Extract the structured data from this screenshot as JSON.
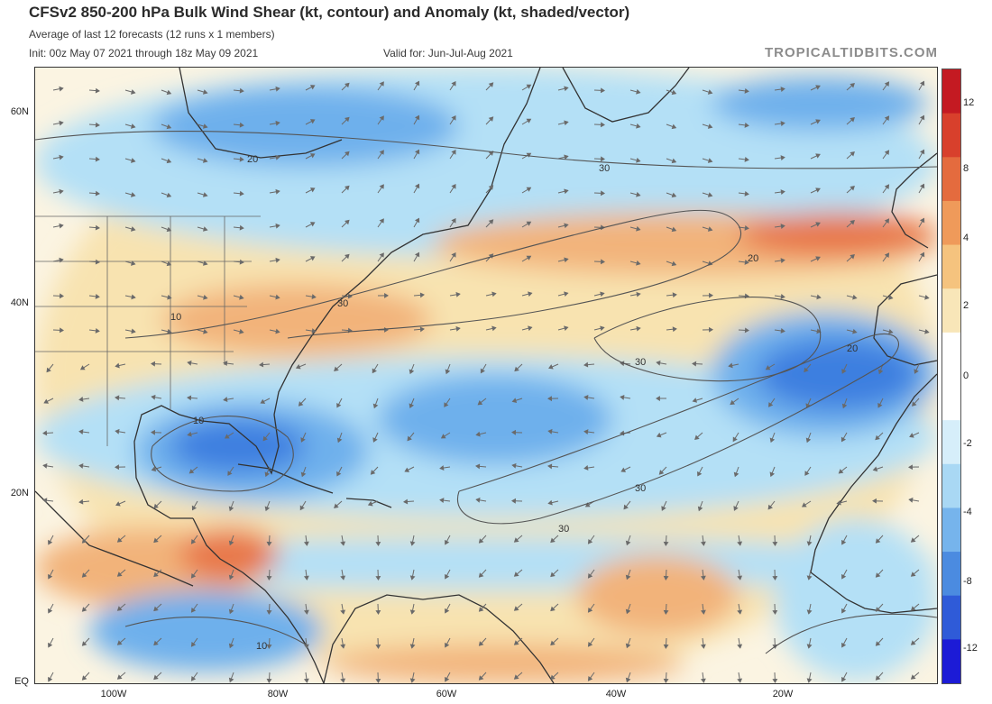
{
  "header": {
    "title": "CFSv2 850-200 hPa Bulk Wind Shear (kt, contour) and Anomaly (kt, shaded/vector)",
    "subtitle": "Average of last 12 forecasts (12 runs x 1 members)",
    "init": "Init: 00z May 07 2021 through 18z May 09 2021",
    "valid": "Valid for: Jun-Jul-Aug 2021",
    "credit": "TROPICALTIDBITS.COM"
  },
  "map": {
    "latitude_labels": [
      "60N",
      "40N",
      "20N",
      "EQ"
    ],
    "longitude_labels": [
      "100W",
      "80W",
      "60W",
      "40W",
      "20W"
    ],
    "contour_labels": [
      "20",
      "30",
      "20",
      "30",
      "10",
      "30",
      "20",
      "10",
      "30",
      "30",
      "10"
    ]
  },
  "colorbar": {
    "tick_labels": [
      "12",
      "8",
      "4",
      "2",
      "0",
      "-2",
      "-4",
      "-8",
      "-12"
    ],
    "colors": [
      "#1c1bd6",
      "#2f5bd8",
      "#4b8be0",
      "#76b4ec",
      "#a9d8f4",
      "#d6eefa",
      "#ffffff",
      "#ffffff",
      "#f8e6b8",
      "#f5c37e",
      "#ef9a5a",
      "#e46b3e",
      "#d8402c",
      "#c41a22"
    ]
  },
  "colors": {
    "neg_strong": "#3e7fe0",
    "neg_mid": "#6eb0ec",
    "neg_light": "#b4e0f6",
    "pos_light": "#f8e3b0",
    "pos_mid": "#f2b37a",
    "pos_strong": "#e8784c",
    "land_line": "#333333",
    "contour": "#555555",
    "vector": "#6a6a6a"
  }
}
